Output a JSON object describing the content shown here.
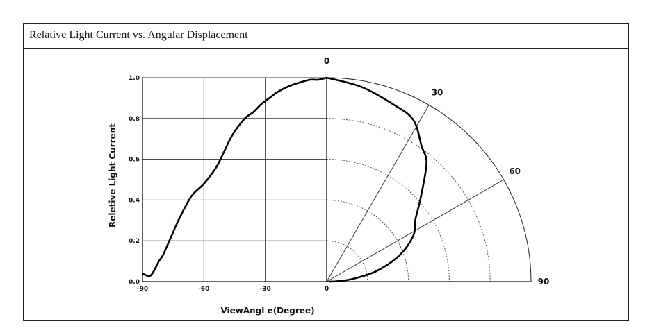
{
  "title": "Relative Light Current vs. Angular Displacement",
  "chart_data": {
    "type": "line",
    "xlabel": "ViewAngl e(Degree)",
    "ylabel": "Reletive Light Current",
    "xlim": [
      -90,
      0
    ],
    "ylim": [
      0,
      1
    ],
    "x_ticks": [
      "-90",
      "-60",
      "-30",
      "0"
    ],
    "y_ticks": [
      "0.0",
      "0.2",
      "0.4",
      "0.6",
      "0.8",
      "1.0"
    ],
    "polar_angle_labels": [
      "0",
      "30",
      "60",
      "90"
    ],
    "cartesian_series": {
      "x": [
        -90,
        -88,
        -86,
        -84,
        -82,
        -80,
        -76,
        -72,
        -66,
        -60,
        -54,
        -50,
        -46,
        -40,
        -36,
        -32,
        -28,
        -24,
        -18,
        -12,
        -8,
        -4,
        0
      ],
      "y": [
        0.04,
        0.03,
        0.03,
        0.06,
        0.1,
        0.13,
        0.22,
        0.31,
        0.42,
        0.48,
        0.56,
        0.64,
        0.72,
        0.8,
        0.83,
        0.87,
        0.9,
        0.93,
        0.96,
        0.98,
        0.99,
        0.99,
        1.0
      ]
    },
    "polar_series": {
      "angle": [
        0,
        10,
        20,
        28,
        35,
        40,
        48,
        55,
        62,
        70,
        78,
        84,
        88,
        90
      ],
      "r": [
        1.0,
        0.97,
        0.93,
        0.9,
        0.81,
        0.76,
        0.62,
        0.53,
        0.48,
        0.38,
        0.25,
        0.13,
        0.05,
        0.01
      ]
    },
    "grid": true
  }
}
